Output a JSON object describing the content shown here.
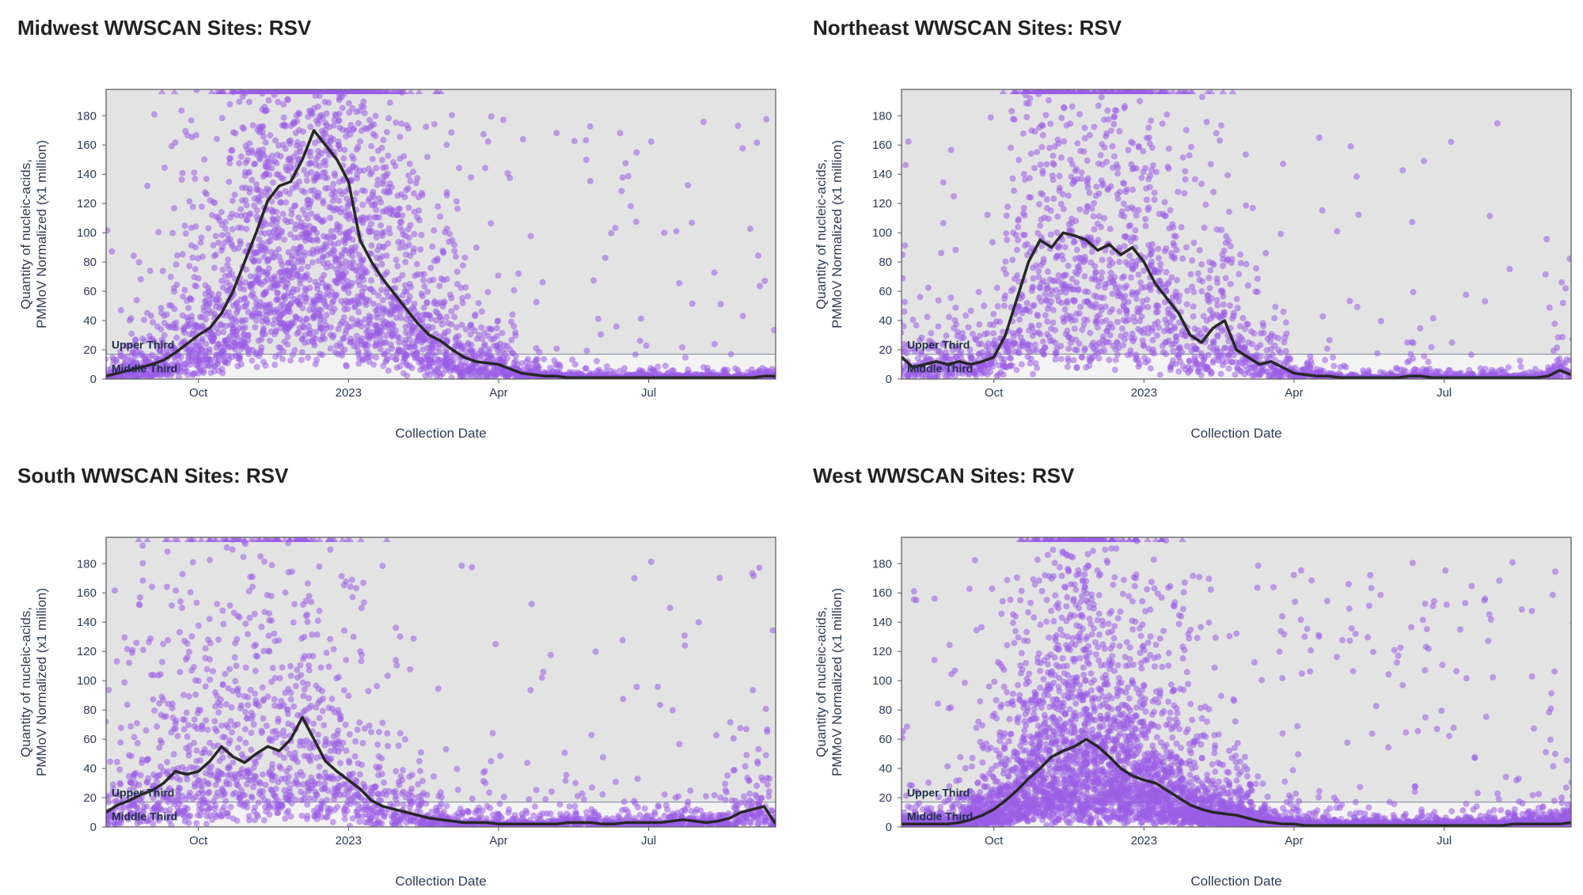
{
  "colors": {
    "plot_bg": "#e3e3e3",
    "band_bg": "#f3f3f3",
    "point": "#9b5de5",
    "line": "#262626",
    "frame": "#555555",
    "band_line": "#7a8a99"
  },
  "chart_data": [
    {
      "type": "scatter",
      "title": "Midwest WWSCAN Sites: RSV",
      "xlabel": "Collection Date",
      "ylabel": [
        "Quantity of nucleic-acids,",
        "PMMoV Normalized (x1 million)"
      ],
      "ylim": [
        0,
        198
      ],
      "yticks": [
        0,
        20,
        40,
        60,
        80,
        100,
        120,
        140,
        160,
        180
      ],
      "xticks": [
        {
          "week": 8,
          "label": "Oct"
        },
        {
          "week": 21,
          "label": "2023"
        },
        {
          "week": 34,
          "label": "Apr"
        },
        {
          "week": 47,
          "label": "Jul"
        }
      ],
      "weeks": 59,
      "band_labels": {
        "upper": "Upper Third",
        "middle": "Middle Third"
      },
      "band_threshold": 17,
      "trend": [
        2,
        4,
        6,
        8,
        10,
        13,
        18,
        24,
        30,
        35,
        45,
        60,
        80,
        100,
        122,
        132,
        135,
        150,
        170,
        160,
        150,
        135,
        95,
        80,
        68,
        58,
        48,
        38,
        30,
        26,
        20,
        15,
        12,
        11,
        10,
        7,
        4,
        3,
        2,
        2,
        1,
        1,
        1,
        1,
        1,
        1,
        1,
        1,
        1,
        1,
        1,
        1,
        1,
        1,
        1,
        1,
        1,
        2,
        2
      ],
      "scatter_spread": 0.95,
      "scatter_density": 3
    },
    {
      "type": "scatter",
      "title": "Northeast WWSCAN Sites: RSV",
      "xlabel": "Collection Date",
      "ylabel": [
        "Quantity of nucleic-acids,",
        "PMMoV Normalized (x1 million)"
      ],
      "ylim": [
        0,
        198
      ],
      "yticks": [
        0,
        20,
        40,
        60,
        80,
        100,
        120,
        140,
        160,
        180
      ],
      "xticks": [
        {
          "week": 8,
          "label": "Oct"
        },
        {
          "week": 21,
          "label": "2023"
        },
        {
          "week": 34,
          "label": "Apr"
        },
        {
          "week": 47,
          "label": "Jul"
        }
      ],
      "weeks": 59,
      "band_labels": {
        "upper": "Upper Third",
        "middle": "Middle Third"
      },
      "band_threshold": 17,
      "trend": [
        15,
        8,
        10,
        12,
        10,
        12,
        10,
        12,
        15,
        30,
        55,
        80,
        95,
        90,
        100,
        98,
        95,
        88,
        92,
        85,
        90,
        80,
        65,
        55,
        45,
        30,
        25,
        35,
        40,
        20,
        15,
        10,
        12,
        8,
        4,
        3,
        2,
        2,
        1,
        1,
        1,
        1,
        1,
        1,
        2,
        2,
        1,
        1,
        1,
        1,
        1,
        1,
        1,
        1,
        1,
        1,
        2,
        6,
        3
      ],
      "scatter_spread": 1.0,
      "scatter_density": 2
    },
    {
      "type": "scatter",
      "title": "South WWSCAN Sites: RSV",
      "xlabel": "Collection Date",
      "ylabel": [
        "Quantity of nucleic-acids,",
        "PMMoV Normalized (x1 million)"
      ],
      "ylim": [
        0,
        198
      ],
      "yticks": [
        0,
        20,
        40,
        60,
        80,
        100,
        120,
        140,
        160,
        180
      ],
      "xticks": [
        {
          "week": 8,
          "label": "Oct"
        },
        {
          "week": 21,
          "label": "2023"
        },
        {
          "week": 34,
          "label": "Apr"
        },
        {
          "week": 47,
          "label": "Jul"
        }
      ],
      "weeks": 59,
      "band_labels": {
        "upper": "Upper Third",
        "middle": "Middle Third"
      },
      "band_threshold": 17,
      "trend": [
        10,
        15,
        18,
        22,
        25,
        30,
        38,
        36,
        38,
        45,
        55,
        48,
        44,
        50,
        55,
        52,
        60,
        75,
        60,
        45,
        38,
        32,
        26,
        18,
        14,
        12,
        10,
        8,
        6,
        5,
        4,
        3,
        3,
        3,
        2,
        2,
        2,
        2,
        2,
        2,
        3,
        3,
        3,
        2,
        2,
        3,
        3,
        3,
        3,
        4,
        5,
        4,
        3,
        4,
        6,
        10,
        12,
        14,
        2
      ],
      "scatter_spread": 1.1,
      "scatter_density": 2
    },
    {
      "type": "scatter",
      "title": "West WWSCAN Sites: RSV",
      "xlabel": "Collection Date",
      "ylabel": [
        "Quantity of nucleic-acids,",
        "PMMoV Normalized (x1 million)"
      ],
      "ylim": [
        0,
        198
      ],
      "yticks": [
        0,
        20,
        40,
        60,
        80,
        100,
        120,
        140,
        160,
        180
      ],
      "xticks": [
        {
          "week": 8,
          "label": "Oct"
        },
        {
          "week": 21,
          "label": "2023"
        },
        {
          "week": 34,
          "label": "Apr"
        },
        {
          "week": 47,
          "label": "Jul"
        }
      ],
      "weeks": 59,
      "band_labels": {
        "upper": "Upper Third",
        "middle": "Middle Third"
      },
      "band_threshold": 17,
      "trend": [
        2,
        2,
        2,
        2,
        2,
        3,
        5,
        8,
        12,
        18,
        25,
        33,
        40,
        48,
        52,
        55,
        60,
        55,
        48,
        40,
        35,
        32,
        30,
        25,
        20,
        15,
        12,
        10,
        9,
        8,
        6,
        4,
        3,
        2,
        2,
        1,
        1,
        1,
        1,
        1,
        1,
        1,
        1,
        1,
        1,
        1,
        1,
        1,
        1,
        1,
        1,
        1,
        1,
        2,
        2,
        2,
        2,
        2,
        3
      ],
      "scatter_spread": 1.0,
      "scatter_density": 6
    }
  ]
}
